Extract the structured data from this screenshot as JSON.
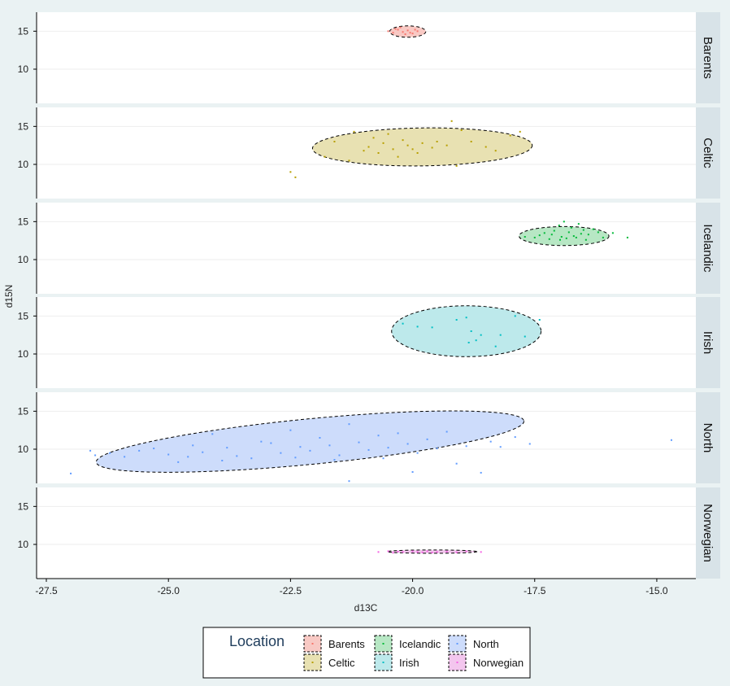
{
  "chart_data": {
    "type": "scatter",
    "xlabel": "d13C",
    "ylabel": "d15N",
    "xlim": [
      -27.7,
      -14.2
    ],
    "ylim": [
      5.5,
      17.5
    ],
    "x_ticks": [
      -27.5,
      -25.0,
      -22.5,
      -20.0,
      -17.5,
      -15.0
    ],
    "x_tick_labels": [
      "-27.5",
      "-25.0",
      "-22.5",
      "-20.0",
      "-17.5",
      "-15.0"
    ],
    "y_ticks": [
      10,
      15
    ],
    "y_tick_labels": [
      "10",
      "15"
    ],
    "grid": true,
    "facet_by": "Location",
    "legend": {
      "title": "Location",
      "position": "bottom",
      "entries": [
        "Barents",
        "Celtic",
        "Icelandic",
        "Irish",
        "North",
        "Norwegian"
      ]
    },
    "series": [
      {
        "name": "Barents",
        "color": "#f8766d",
        "fill": "#f8c9c4",
        "ellipse": {
          "cx": -20.1,
          "cy": 14.95,
          "rx": 0.37,
          "ry": 0.75,
          "angle": 0
        },
        "points": [
          [
            -20.5,
            15.0
          ],
          [
            -20.4,
            14.8
          ],
          [
            -20.3,
            15.2
          ],
          [
            -20.2,
            14.9
          ],
          [
            -20.1,
            15.1
          ],
          [
            -20.0,
            14.7
          ],
          [
            -19.9,
            15.0
          ],
          [
            -20.35,
            15.3
          ],
          [
            -20.15,
            14.6
          ],
          [
            -19.95,
            15.2
          ],
          [
            -20.25,
            15.5
          ],
          [
            -20.05,
            14.8
          ]
        ]
      },
      {
        "name": "Celtic",
        "color": "#b79f00",
        "fill": "#e8e1b2",
        "ellipse": {
          "cx": -19.8,
          "cy": 12.3,
          "rx": 2.25,
          "ry": 2.5,
          "angle": 0.8
        },
        "points": [
          [
            -22.5,
            9.0
          ],
          [
            -22.4,
            8.3
          ],
          [
            -21.8,
            11.0
          ],
          [
            -21.6,
            13.0
          ],
          [
            -21.3,
            10.5
          ],
          [
            -21.0,
            11.8
          ],
          [
            -20.9,
            12.3
          ],
          [
            -20.8,
            13.5
          ],
          [
            -20.7,
            11.5
          ],
          [
            -20.6,
            12.8
          ],
          [
            -20.5,
            14.0
          ],
          [
            -20.4,
            12.0
          ],
          [
            -20.3,
            11.0
          ],
          [
            -20.2,
            13.2
          ],
          [
            -20.1,
            12.5
          ],
          [
            -20.0,
            12.0
          ],
          [
            -19.9,
            11.5
          ],
          [
            -19.8,
            12.8
          ],
          [
            -19.6,
            12.2
          ],
          [
            -19.5,
            13.0
          ],
          [
            -19.3,
            12.5
          ],
          [
            -19.2,
            15.7
          ],
          [
            -19.1,
            9.8
          ],
          [
            -19.0,
            14.5
          ],
          [
            -18.8,
            13.0
          ],
          [
            -18.5,
            12.3
          ],
          [
            -18.3,
            11.8
          ],
          [
            -18.0,
            13.8
          ],
          [
            -17.8,
            14.3
          ],
          [
            -21.2,
            14.3
          ]
        ]
      },
      {
        "name": "Icelandic",
        "color": "#00ba38",
        "fill": "#b7e7c4",
        "ellipse": {
          "cx": -16.9,
          "cy": 13.1,
          "rx": 0.92,
          "ry": 1.25,
          "angle": 0
        },
        "points": [
          [
            -17.7,
            13.0
          ],
          [
            -17.5,
            12.9
          ],
          [
            -17.4,
            13.2
          ],
          [
            -17.3,
            13.5
          ],
          [
            -17.2,
            12.7
          ],
          [
            -17.1,
            13.8
          ],
          [
            -17.0,
            14.5
          ],
          [
            -16.95,
            13.0
          ],
          [
            -16.9,
            15.0
          ],
          [
            -16.85,
            12.8
          ],
          [
            -16.8,
            13.6
          ],
          [
            -16.75,
            14.2
          ],
          [
            -16.7,
            13.1
          ],
          [
            -16.65,
            12.9
          ],
          [
            -16.6,
            14.7
          ],
          [
            -16.55,
            13.4
          ],
          [
            -16.5,
            13.9
          ],
          [
            -16.45,
            12.6
          ],
          [
            -16.4,
            13.3
          ],
          [
            -16.3,
            14.0
          ],
          [
            -16.2,
            13.6
          ],
          [
            -16.1,
            12.9
          ],
          [
            -15.9,
            13.5
          ],
          [
            -15.6,
            12.9
          ],
          [
            -17.15,
            13.3
          ],
          [
            -16.98,
            12.6
          ]
        ]
      },
      {
        "name": "Irish",
        "color": "#00bfc4",
        "fill": "#bde9eb",
        "ellipse": {
          "cx": -18.9,
          "cy": 13.0,
          "rx": 1.53,
          "ry": 3.35,
          "angle": 0
        },
        "points": [
          [
            -20.2,
            14.0
          ],
          [
            -19.9,
            13.6
          ],
          [
            -19.6,
            13.5
          ],
          [
            -19.1,
            14.5
          ],
          [
            -18.9,
            14.8
          ],
          [
            -18.8,
            13.0
          ],
          [
            -18.7,
            11.8
          ],
          [
            -18.6,
            12.5
          ],
          [
            -18.3,
            11.0
          ],
          [
            -18.2,
            12.5
          ],
          [
            -17.9,
            15.0
          ],
          [
            -17.7,
            12.3
          ],
          [
            -17.4,
            14.5
          ],
          [
            -18.85,
            11.5
          ]
        ]
      },
      {
        "name": "North",
        "color": "#619cff",
        "fill": "#cddcfb",
        "ellipse": {
          "cx": -22.1,
          "cy": 11.0,
          "rx": 4.4,
          "ry": 3.0,
          "angle": 5.5
        },
        "points": [
          [
            -27.0,
            6.8
          ],
          [
            -26.6,
            9.8
          ],
          [
            -26.5,
            9.2
          ],
          [
            -26.2,
            9.5
          ],
          [
            -25.9,
            9.0
          ],
          [
            -25.6,
            9.8
          ],
          [
            -25.3,
            10.1
          ],
          [
            -25.0,
            9.3
          ],
          [
            -24.8,
            8.3
          ],
          [
            -24.5,
            10.5
          ],
          [
            -24.3,
            9.6
          ],
          [
            -24.1,
            12.0
          ],
          [
            -23.8,
            10.2
          ],
          [
            -23.6,
            9.1
          ],
          [
            -23.3,
            8.8
          ],
          [
            -23.1,
            11.0
          ],
          [
            -22.9,
            10.8
          ],
          [
            -22.7,
            9.5
          ],
          [
            -22.5,
            12.5
          ],
          [
            -22.3,
            10.3
          ],
          [
            -22.1,
            9.8
          ],
          [
            -21.9,
            11.5
          ],
          [
            -21.7,
            10.5
          ],
          [
            -21.5,
            9.2
          ],
          [
            -21.3,
            13.3
          ],
          [
            -21.3,
            5.8
          ],
          [
            -21.1,
            10.9
          ],
          [
            -20.9,
            9.9
          ],
          [
            -20.7,
            11.8
          ],
          [
            -20.5,
            10.2
          ],
          [
            -20.3,
            12.1
          ],
          [
            -20.1,
            10.7
          ],
          [
            -20.0,
            7.0
          ],
          [
            -19.9,
            9.5
          ],
          [
            -19.7,
            11.3
          ],
          [
            -19.5,
            10.1
          ],
          [
            -19.3,
            12.3
          ],
          [
            -19.1,
            8.1
          ],
          [
            -18.9,
            10.4
          ],
          [
            -18.6,
            6.9
          ],
          [
            -18.4,
            11.0
          ],
          [
            -18.2,
            10.3
          ],
          [
            -17.9,
            11.6
          ],
          [
            -17.6,
            10.7
          ],
          [
            -14.7,
            11.2
          ],
          [
            -24.6,
            9.0
          ],
          [
            -23.9,
            8.5
          ],
          [
            -22.4,
            8.9
          ],
          [
            -21.6,
            8.6
          ],
          [
            -20.6,
            8.8
          ]
        ]
      },
      {
        "name": "Norwegian",
        "color": "#f564e3",
        "fill": "#f3c6ee",
        "ellipse": {
          "cx": -19.6,
          "cy": 9.05,
          "rx": 0.92,
          "ry": 0.22,
          "angle": 0
        },
        "points": [
          [
            -20.7,
            9.0
          ],
          [
            -20.5,
            9.1
          ],
          [
            -20.4,
            8.9
          ],
          [
            -20.2,
            9.0
          ],
          [
            -20.0,
            9.1
          ],
          [
            -19.9,
            9.0
          ],
          [
            -19.8,
            8.95
          ],
          [
            -19.7,
            9.1
          ],
          [
            -19.5,
            9.0
          ],
          [
            -19.3,
            9.05
          ],
          [
            -19.1,
            8.95
          ],
          [
            -18.9,
            9.1
          ],
          [
            -18.6,
            9.0
          ],
          [
            -20.3,
            9.05
          ],
          [
            -19.6,
            8.92
          ]
        ]
      }
    ]
  }
}
